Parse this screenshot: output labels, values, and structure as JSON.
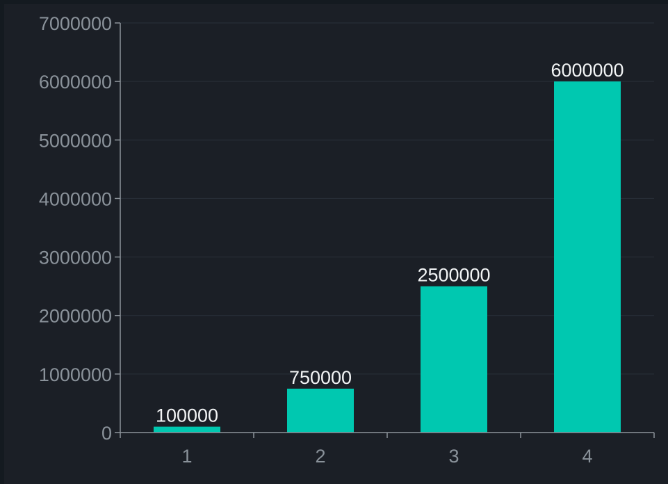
{
  "chart_data": {
    "type": "bar",
    "title": "",
    "xlabel": "",
    "ylabel": "",
    "categories": [
      "1",
      "2",
      "3",
      "4"
    ],
    "values": [
      100000,
      750000,
      2500000,
      6000000
    ],
    "value_labels": [
      "100000",
      "750000",
      "2500000",
      "6000000"
    ],
    "ylim": [
      0,
      7000000
    ],
    "yticks": [
      0,
      1000000,
      2000000,
      3000000,
      4000000,
      5000000,
      6000000,
      7000000
    ],
    "ytick_labels": [
      "0",
      "1000000",
      "2000000",
      "3000000",
      "4000000",
      "5000000",
      "6000000",
      "7000000"
    ],
    "grid": true,
    "legend": "none",
    "bar_color": "#00c8b0",
    "background_color": "#1b1f26"
  }
}
